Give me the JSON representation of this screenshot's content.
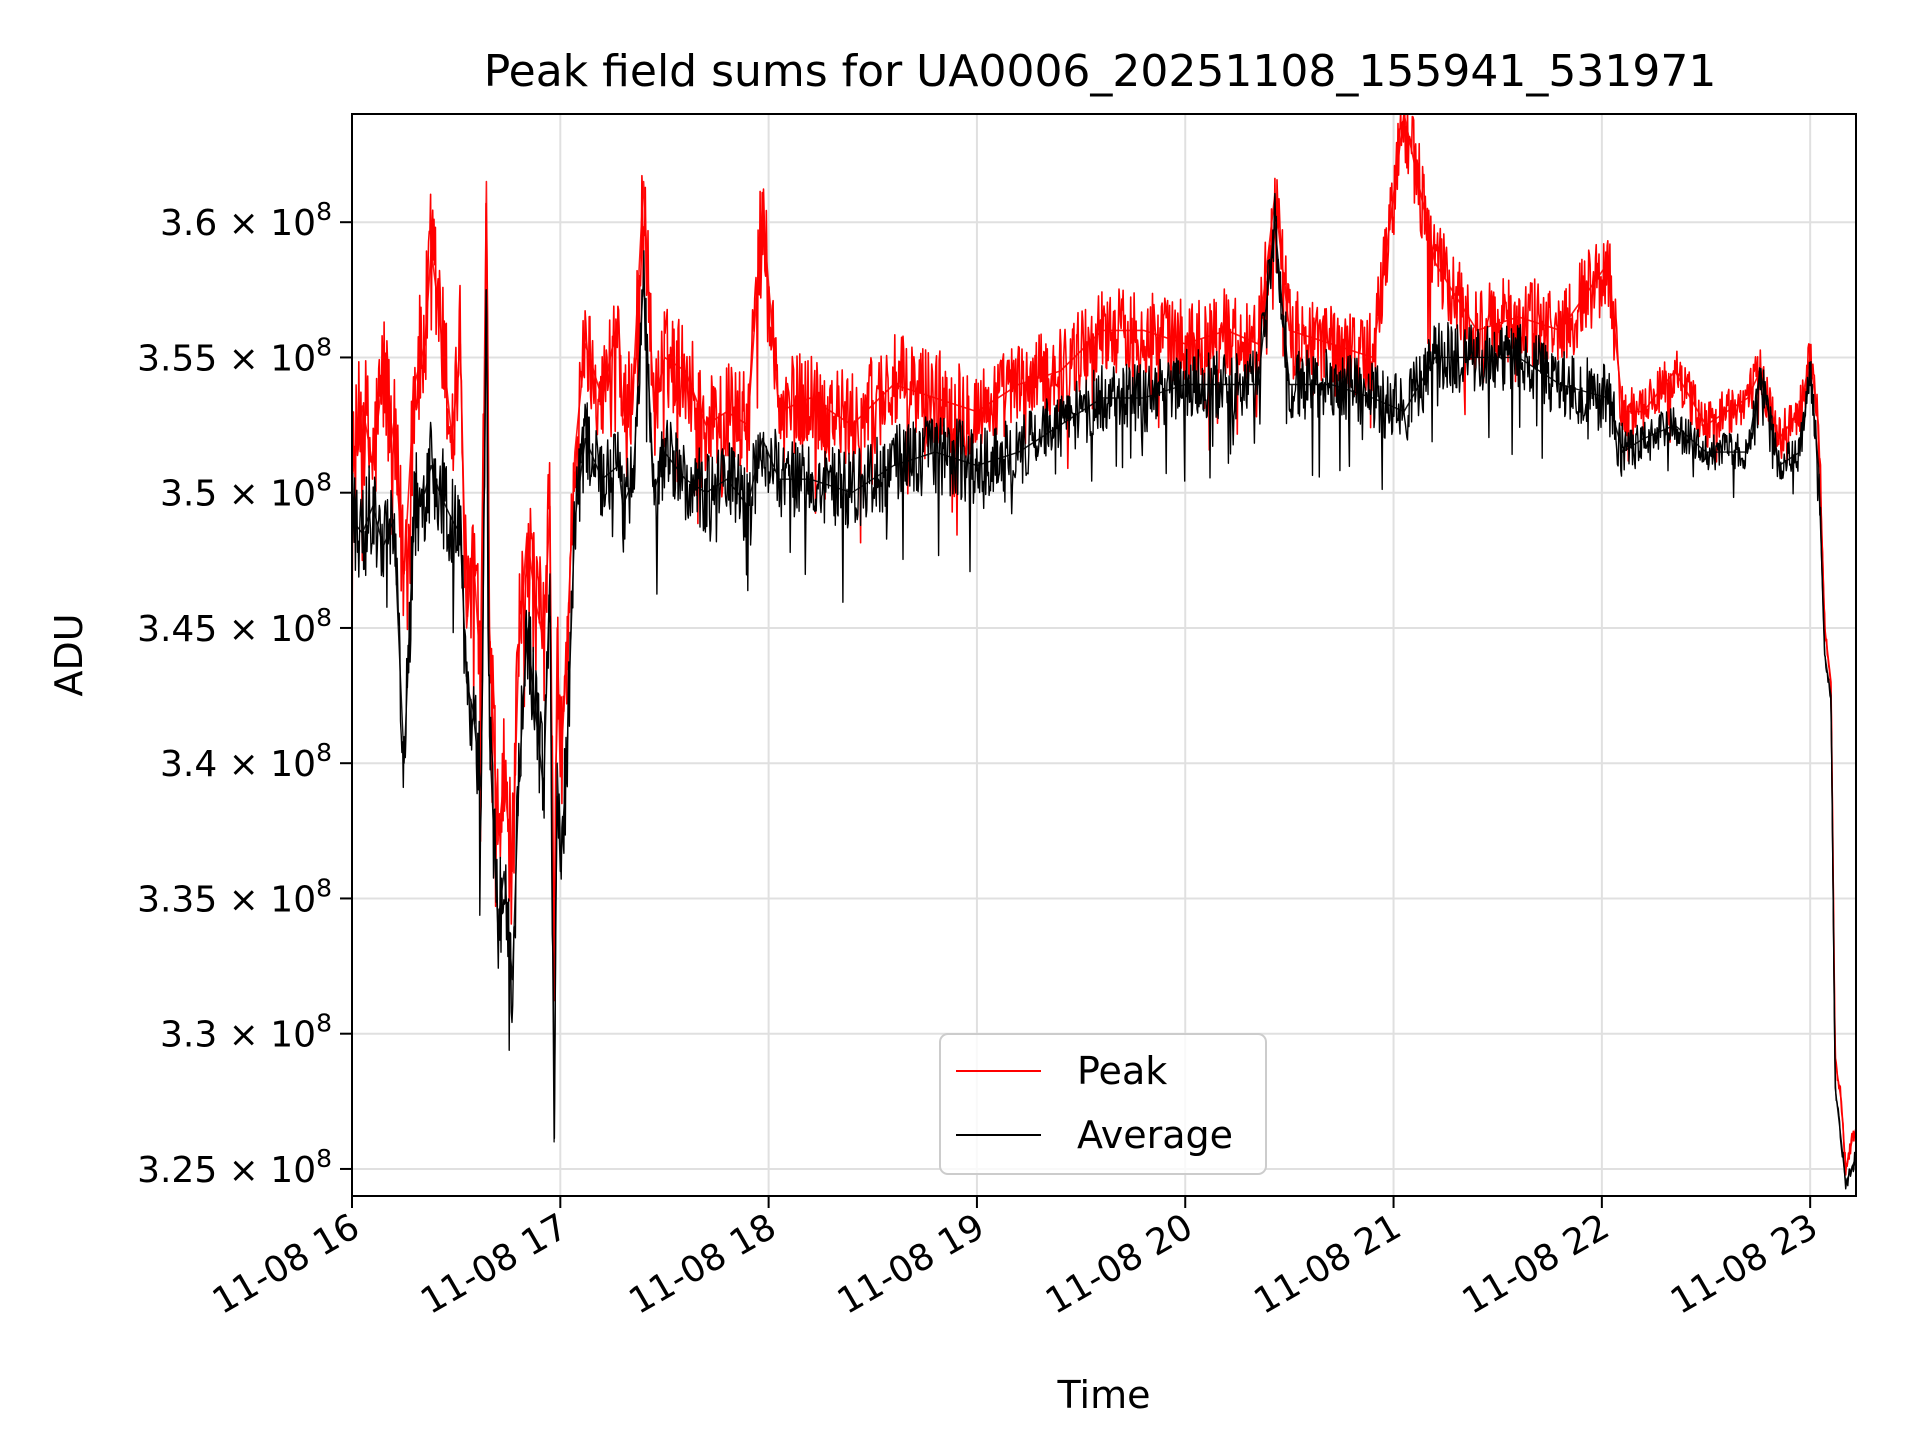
{
  "chart_data": {
    "type": "line",
    "title": "Peak field sums for UA0006_20251108_155941_531971",
    "xlabel": "Time",
    "ylabel": "ADU",
    "x_unit": "hours",
    "xlim": [
      16.0,
      23.22
    ],
    "ylim": [
      324000000,
      364000000
    ],
    "grid": true,
    "legend_position": "lower-center",
    "x_ticks": [
      {
        "value": 16,
        "label": "11-08 16"
      },
      {
        "value": 17,
        "label": "11-08 17"
      },
      {
        "value": 18,
        "label": "11-08 18"
      },
      {
        "value": 19,
        "label": "11-08 19"
      },
      {
        "value": 20,
        "label": "11-08 20"
      },
      {
        "value": 21,
        "label": "11-08 21"
      },
      {
        "value": 22,
        "label": "11-08 22"
      },
      {
        "value": 23,
        "label": "11-08 23"
      }
    ],
    "y_ticks": [
      {
        "value": 325000000,
        "mantissa": "3.25"
      },
      {
        "value": 330000000,
        "mantissa": "3.3"
      },
      {
        "value": 335000000,
        "mantissa": "3.35"
      },
      {
        "value": 340000000,
        "mantissa": "3.4"
      },
      {
        "value": 345000000,
        "mantissa": "3.45"
      },
      {
        "value": 350000000,
        "mantissa": "3.5"
      },
      {
        "value": 355000000,
        "mantissa": "3.55"
      },
      {
        "value": 360000000,
        "mantissa": "3.6"
      }
    ],
    "y_tick_suffix": "× 10",
    "y_tick_exponent": "8",
    "series": [
      {
        "name": "Peak",
        "color": "#ff0000",
        "points": [
          [
            16.0,
            350.5
          ],
          [
            16.05,
            353.2
          ],
          [
            16.1,
            351.0
          ],
          [
            16.15,
            354.5
          ],
          [
            16.2,
            352.0
          ],
          [
            16.25,
            347.0
          ],
          [
            16.3,
            354.0
          ],
          [
            16.35,
            355.5
          ],
          [
            16.38,
            359.0
          ],
          [
            16.42,
            356.5
          ],
          [
            16.48,
            352.0
          ],
          [
            16.52,
            355.5
          ],
          [
            16.55,
            345.0
          ],
          [
            16.58,
            348.0
          ],
          [
            16.62,
            343.0
          ],
          [
            16.645,
            361.5
          ],
          [
            16.66,
            345.0
          ],
          [
            16.7,
            337.0
          ],
          [
            16.73,
            339.5
          ],
          [
            16.77,
            336.0
          ],
          [
            16.8,
            344.0
          ],
          [
            16.84,
            348.5
          ],
          [
            16.88,
            346.0
          ],
          [
            16.92,
            344.5
          ],
          [
            16.95,
            349.5
          ],
          [
            16.97,
            331.5
          ],
          [
            16.985,
            345.0
          ],
          [
            17.0,
            339.5
          ],
          [
            17.03,
            344.0
          ],
          [
            17.07,
            351.5
          ],
          [
            17.12,
            355.5
          ],
          [
            17.2,
            353.5
          ],
          [
            17.28,
            356.5
          ],
          [
            17.3,
            352.5
          ],
          [
            17.35,
            354.0
          ],
          [
            17.4,
            361.5
          ],
          [
            17.45,
            353.0
          ],
          [
            17.5,
            355.0
          ],
          [
            17.6,
            354.5
          ],
          [
            17.7,
            352.5
          ],
          [
            17.8,
            353.0
          ],
          [
            17.9,
            352.5
          ],
          [
            17.97,
            360.5
          ],
          [
            18.05,
            353.0
          ],
          [
            18.2,
            353.5
          ],
          [
            18.4,
            352.5
          ],
          [
            18.6,
            354.0
          ],
          [
            18.8,
            353.5
          ],
          [
            19.0,
            353.0
          ],
          [
            19.2,
            354.0
          ],
          [
            19.4,
            354.5
          ],
          [
            19.6,
            356.0
          ],
          [
            19.8,
            356.0
          ],
          [
            20.0,
            355.5
          ],
          [
            20.2,
            356.0
          ],
          [
            20.35,
            355.5
          ],
          [
            20.43,
            361.0
          ],
          [
            20.5,
            356.0
          ],
          [
            20.7,
            355.5
          ],
          [
            20.9,
            355.0
          ],
          [
            21.05,
            364.0
          ],
          [
            21.2,
            358.5
          ],
          [
            21.4,
            356.0
          ],
          [
            21.6,
            356.5
          ],
          [
            21.8,
            356.0
          ],
          [
            22.03,
            358.5
          ],
          [
            22.1,
            353.0
          ],
          [
            22.2,
            353.0
          ],
          [
            22.35,
            354.5
          ],
          [
            22.5,
            352.5
          ],
          [
            22.7,
            353.5
          ],
          [
            22.76,
            354.5
          ],
          [
            22.85,
            352.0
          ],
          [
            22.95,
            353.0
          ],
          [
            23.0,
            355.0
          ],
          [
            23.04,
            352.5
          ],
          [
            23.07,
            345.0
          ],
          [
            23.1,
            343.0
          ],
          [
            23.12,
            329.0
          ],
          [
            23.15,
            327.5
          ],
          [
            23.17,
            325.0
          ],
          [
            23.2,
            326.0
          ],
          [
            23.22,
            326.5
          ]
        ]
      },
      {
        "name": "Average",
        "color": "#000000",
        "points": [
          [
            16.0,
            349.0
          ],
          [
            16.05,
            348.5
          ],
          [
            16.1,
            349.5
          ],
          [
            16.15,
            348.0
          ],
          [
            16.2,
            349.0
          ],
          [
            16.25,
            340.0
          ],
          [
            16.3,
            349.5
          ],
          [
            16.35,
            350.0
          ],
          [
            16.38,
            351.0
          ],
          [
            16.42,
            350.0
          ],
          [
            16.48,
            349.0
          ],
          [
            16.52,
            348.5
          ],
          [
            16.55,
            343.0
          ],
          [
            16.58,
            342.0
          ],
          [
            16.62,
            339.0
          ],
          [
            16.645,
            357.5
          ],
          [
            16.66,
            341.0
          ],
          [
            16.7,
            334.0
          ],
          [
            16.73,
            336.0
          ],
          [
            16.77,
            332.0
          ],
          [
            16.8,
            339.0
          ],
          [
            16.84,
            345.0
          ],
          [
            16.88,
            342.0
          ],
          [
            16.92,
            339.0
          ],
          [
            16.95,
            347.0
          ],
          [
            16.97,
            326.0
          ],
          [
            16.985,
            340.0
          ],
          [
            17.0,
            336.0
          ],
          [
            17.03,
            340.0
          ],
          [
            17.07,
            349.0
          ],
          [
            17.12,
            352.0
          ],
          [
            17.2,
            350.5
          ],
          [
            17.28,
            351.0
          ],
          [
            17.3,
            349.5
          ],
          [
            17.35,
            350.5
          ],
          [
            17.4,
            358.0
          ],
          [
            17.45,
            350.0
          ],
          [
            17.5,
            351.5
          ],
          [
            17.6,
            350.5
          ],
          [
            17.7,
            350.0
          ],
          [
            17.8,
            350.5
          ],
          [
            17.9,
            349.5
          ],
          [
            17.97,
            352.0
          ],
          [
            18.05,
            350.5
          ],
          [
            18.2,
            350.5
          ],
          [
            18.4,
            350.0
          ],
          [
            18.6,
            351.0
          ],
          [
            18.8,
            351.5
          ],
          [
            19.0,
            351.0
          ],
          [
            19.2,
            351.5
          ],
          [
            19.4,
            352.5
          ],
          [
            19.6,
            353.5
          ],
          [
            19.8,
            353.5
          ],
          [
            20.0,
            354.0
          ],
          [
            20.2,
            354.0
          ],
          [
            20.35,
            354.0
          ],
          [
            20.43,
            360.0
          ],
          [
            20.5,
            354.0
          ],
          [
            20.7,
            354.0
          ],
          [
            20.9,
            353.5
          ],
          [
            21.05,
            353.0
          ],
          [
            21.2,
            355.0
          ],
          [
            21.4,
            355.0
          ],
          [
            21.6,
            355.0
          ],
          [
            21.8,
            354.0
          ],
          [
            22.03,
            353.5
          ],
          [
            22.1,
            351.5
          ],
          [
            22.2,
            352.0
          ],
          [
            22.35,
            352.5
          ],
          [
            22.5,
            351.5
          ],
          [
            22.7,
            351.5
          ],
          [
            22.76,
            354.5
          ],
          [
            22.85,
            351.0
          ],
          [
            22.95,
            351.5
          ],
          [
            23.0,
            354.5
          ],
          [
            23.04,
            351.0
          ],
          [
            23.07,
            344.0
          ],
          [
            23.1,
            342.5
          ],
          [
            23.12,
            328.0
          ],
          [
            23.15,
            326.0
          ],
          [
            23.17,
            324.5
          ],
          [
            23.2,
            325.0
          ],
          [
            23.22,
            325.5
          ]
        ]
      }
    ]
  }
}
